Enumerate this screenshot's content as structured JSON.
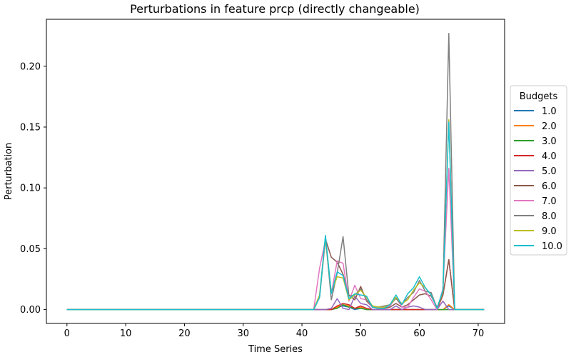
{
  "chart_data": {
    "type": "line",
    "title": "Perturbations in feature prcp (directly changeable)",
    "xlabel": "Time Series",
    "ylabel": "Perturbation",
    "xlim": [
      -3.5,
      74.5
    ],
    "ylim": [
      -0.0114,
      0.2386
    ],
    "xticks": [
      0,
      10,
      20,
      30,
      40,
      50,
      60,
      70
    ],
    "xtick_labels": [
      "0",
      "10",
      "20",
      "30",
      "40",
      "50",
      "60",
      "70"
    ],
    "yticks": [
      0.0,
      0.05,
      0.1,
      0.15,
      0.2
    ],
    "ytick_labels": [
      "0.00",
      "0.05",
      "0.10",
      "0.15",
      "0.20"
    ],
    "grid": false,
    "legend": {
      "title": "Budgets",
      "placement": "right"
    },
    "series": [
      {
        "name": "1.0",
        "color": "#1f77b4",
        "points": [
          [
            0,
            0
          ],
          [
            44,
            0
          ],
          [
            45,
            0
          ],
          [
            46,
            0.002
          ],
          [
            47,
            0.003
          ],
          [
            48,
            0.002
          ],
          [
            49,
            0
          ],
          [
            50,
            0.001
          ],
          [
            51,
            0
          ],
          [
            64,
            0
          ],
          [
            65,
            0.003
          ],
          [
            66,
            0
          ],
          [
            71,
            0
          ]
        ]
      },
      {
        "name": "2.0",
        "color": "#ff7f0e",
        "points": [
          [
            0,
            0
          ],
          [
            45,
            0
          ],
          [
            46,
            0.002
          ],
          [
            47,
            0.004
          ],
          [
            48,
            0.003
          ],
          [
            49,
            0.001
          ],
          [
            50,
            0.002
          ],
          [
            51,
            0
          ],
          [
            64,
            0
          ],
          [
            65,
            0.004
          ],
          [
            66,
            0
          ],
          [
            71,
            0
          ]
        ]
      },
      {
        "name": "3.0",
        "color": "#2ca02c",
        "points": [
          [
            0,
            0
          ],
          [
            45,
            0
          ],
          [
            46,
            0.001
          ],
          [
            47,
            0.004
          ],
          [
            48,
            0.002
          ],
          [
            49,
            0.001
          ],
          [
            50,
            0.001
          ],
          [
            51,
            0
          ],
          [
            71,
            0
          ]
        ]
      },
      {
        "name": "4.0",
        "color": "#d62728",
        "points": [
          [
            0,
            0
          ],
          [
            45,
            0
          ],
          [
            46,
            0.003
          ],
          [
            47,
            0.005
          ],
          [
            48,
            0.004
          ],
          [
            49,
            0.001
          ],
          [
            50,
            0.003
          ],
          [
            51,
            0.001
          ],
          [
            52,
            0
          ],
          [
            63,
            0
          ],
          [
            64,
            0.012
          ],
          [
            65,
            0.041
          ],
          [
            66,
            0
          ],
          [
            71,
            0
          ]
        ]
      },
      {
        "name": "5.0",
        "color": "#9467bd",
        "points": [
          [
            0,
            0
          ],
          [
            44,
            0
          ],
          [
            45,
            0.001
          ],
          [
            46,
            0.009
          ],
          [
            47,
            0.001
          ],
          [
            48,
            0
          ],
          [
            49,
            0.011
          ],
          [
            50,
            0.005
          ],
          [
            51,
            0.004
          ],
          [
            52,
            0
          ],
          [
            55,
            0
          ],
          [
            56,
            0.003
          ],
          [
            57,
            0
          ],
          [
            58,
            0.002
          ],
          [
            59,
            0.003
          ],
          [
            60,
            0.002
          ],
          [
            61,
            0
          ],
          [
            63,
            0
          ],
          [
            64,
            0.007
          ],
          [
            65,
            0
          ],
          [
            66,
            0
          ],
          [
            71,
            0
          ]
        ]
      },
      {
        "name": "6.0",
        "color": "#8c564b",
        "points": [
          [
            0,
            0
          ],
          [
            42,
            0
          ],
          [
            43,
            0.01
          ],
          [
            44,
            0.058
          ],
          [
            45,
            0.043
          ],
          [
            46,
            0.039
          ],
          [
            47,
            0.029
          ],
          [
            48,
            0.012
          ],
          [
            49,
            0.008
          ],
          [
            50,
            0.019
          ],
          [
            51,
            0.007
          ],
          [
            52,
            0.002
          ],
          [
            53,
            0.001
          ],
          [
            54,
            0.001
          ],
          [
            55,
            0.002
          ],
          [
            56,
            0.005
          ],
          [
            57,
            0.002
          ],
          [
            58,
            0.004
          ],
          [
            59,
            0.008
          ],
          [
            60,
            0.012
          ],
          [
            61,
            0.013
          ],
          [
            62,
            0.011
          ],
          [
            63,
            0.002
          ],
          [
            64,
            0.012
          ],
          [
            65,
            0.041
          ],
          [
            66,
            0
          ],
          [
            71,
            0
          ]
        ]
      },
      {
        "name": "7.0",
        "color": "#e377c2",
        "points": [
          [
            0,
            0
          ],
          [
            42,
            0
          ],
          [
            43,
            0.034
          ],
          [
            44,
            0.057
          ],
          [
            45,
            0.013
          ],
          [
            46,
            0.04
          ],
          [
            47,
            0.038
          ],
          [
            48,
            0.007
          ],
          [
            49,
            0.02
          ],
          [
            50,
            0.009
          ],
          [
            51,
            0.008
          ],
          [
            52,
            0.002
          ],
          [
            53,
            0.001
          ],
          [
            54,
            0.002
          ],
          [
            55,
            0.003
          ],
          [
            56,
            0.01
          ],
          [
            57,
            0.002
          ],
          [
            58,
            0.002
          ],
          [
            59,
            0.01
          ],
          [
            60,
            0.017
          ],
          [
            61,
            0.015
          ],
          [
            62,
            0.008
          ],
          [
            63,
            0
          ],
          [
            64,
            0.017
          ],
          [
            65,
            0.116
          ],
          [
            66,
            0
          ],
          [
            71,
            0
          ]
        ]
      },
      {
        "name": "8.0",
        "color": "#7f7f7f",
        "points": [
          [
            0,
            0
          ],
          [
            42,
            0
          ],
          [
            43,
            0.011
          ],
          [
            44,
            0.06
          ],
          [
            45,
            0.008
          ],
          [
            46,
            0.03
          ],
          [
            47,
            0.06
          ],
          [
            48,
            0.011
          ],
          [
            49,
            0.012
          ],
          [
            50,
            0.017
          ],
          [
            51,
            0.008
          ],
          [
            52,
            0.003
          ],
          [
            53,
            0.002
          ],
          [
            54,
            0.003
          ],
          [
            55,
            0.004
          ],
          [
            56,
            0.009
          ],
          [
            57,
            0.004
          ],
          [
            58,
            0.01
          ],
          [
            59,
            0.014
          ],
          [
            60,
            0.024
          ],
          [
            61,
            0.015
          ],
          [
            62,
            0.014
          ],
          [
            63,
            0.001
          ],
          [
            64,
            0.015
          ],
          [
            65,
            0.227
          ],
          [
            66,
            0
          ],
          [
            71,
            0
          ]
        ]
      },
      {
        "name": "9.0",
        "color": "#bcbd22",
        "points": [
          [
            0,
            0
          ],
          [
            42,
            0
          ],
          [
            43,
            0.012
          ],
          [
            44,
            0.059
          ],
          [
            45,
            0.014
          ],
          [
            46,
            0.027
          ],
          [
            47,
            0.026
          ],
          [
            48,
            0.008
          ],
          [
            49,
            0.012
          ],
          [
            50,
            0.016
          ],
          [
            51,
            0.01
          ],
          [
            52,
            0.003
          ],
          [
            53,
            0.002
          ],
          [
            54,
            0.002
          ],
          [
            55,
            0.004
          ],
          [
            56,
            0.01
          ],
          [
            57,
            0.005
          ],
          [
            58,
            0.008
          ],
          [
            59,
            0.016
          ],
          [
            60,
            0.022
          ],
          [
            61,
            0.018
          ],
          [
            62,
            0.012
          ],
          [
            63,
            0.001
          ],
          [
            64,
            0.015
          ],
          [
            65,
            0.156
          ],
          [
            66,
            0
          ],
          [
            71,
            0
          ]
        ]
      },
      {
        "name": "10.0",
        "color": "#17becf",
        "points": [
          [
            0,
            0
          ],
          [
            42,
            0
          ],
          [
            43,
            0.01
          ],
          [
            44,
            0.061
          ],
          [
            45,
            0.013
          ],
          [
            46,
            0.031
          ],
          [
            47,
            0.028
          ],
          [
            48,
            0.009
          ],
          [
            49,
            0.013
          ],
          [
            50,
            0.012
          ],
          [
            51,
            0.011
          ],
          [
            52,
            0.002
          ],
          [
            53,
            0.001
          ],
          [
            54,
            0.001
          ],
          [
            55,
            0.004
          ],
          [
            56,
            0.012
          ],
          [
            57,
            0.004
          ],
          [
            58,
            0.013
          ],
          [
            59,
            0.018
          ],
          [
            60,
            0.027
          ],
          [
            61,
            0.018
          ],
          [
            62,
            0.012
          ],
          [
            63,
            0.001
          ],
          [
            64,
            0.016
          ],
          [
            65,
            0.154
          ],
          [
            66,
            0
          ],
          [
            71,
            0
          ]
        ]
      }
    ]
  }
}
